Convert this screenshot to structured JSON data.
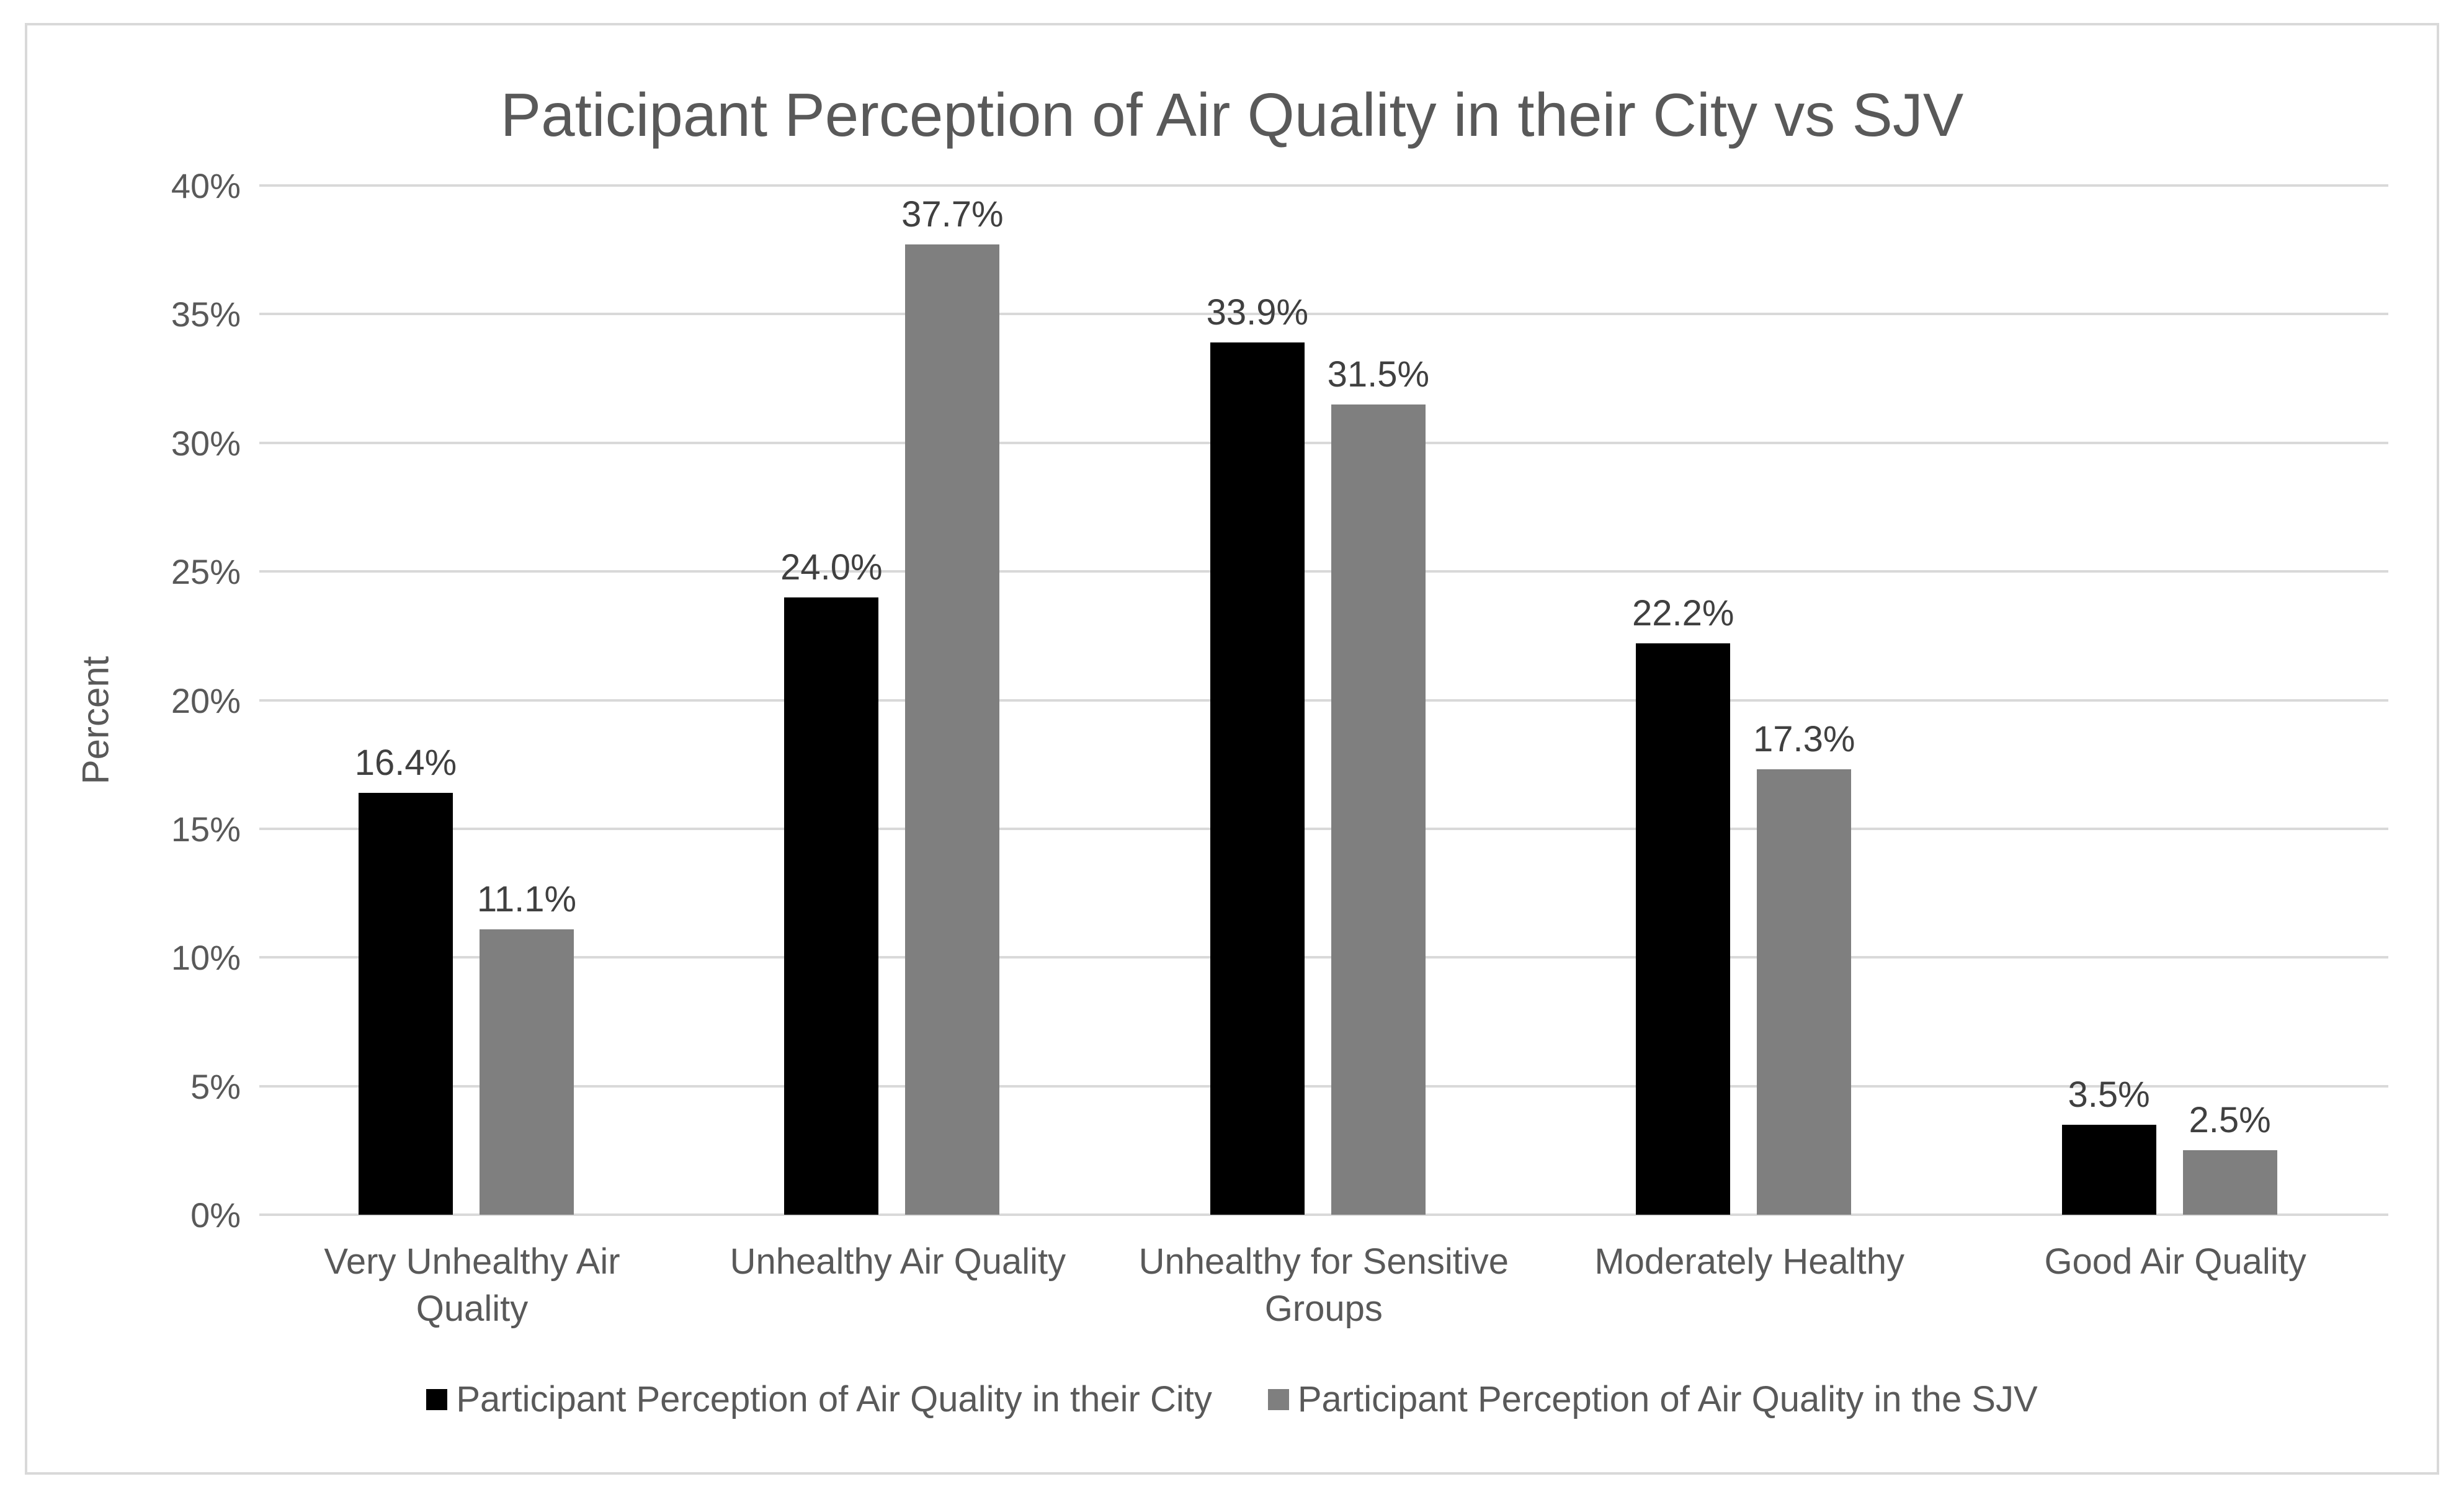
{
  "chart_data": {
    "type": "bar",
    "title": "Paticipant Perception of Air Quality in their City vs SJV",
    "xlabel": "",
    "ylabel": "Percent",
    "ylim": [
      0,
      40
    ],
    "yticks": [
      "0%",
      "5%",
      "10%",
      "15%",
      "20%",
      "25%",
      "30%",
      "35%",
      "40%"
    ],
    "grid": true,
    "legend_position": "bottom",
    "categories": [
      "Very Unhealthy Air Quality",
      "Unhealthy Air Quality",
      "Unhealthy for Sensitive Groups",
      "Moderately Healthy",
      "Good Air Quality"
    ],
    "series": [
      {
        "name": "Participant Perception of Air Quality in their City",
        "color": "#000000",
        "values": [
          16.4,
          24.0,
          33.9,
          22.2,
          3.5
        ],
        "labels": [
          "16.4%",
          "24.0%",
          "33.9%",
          "22.2%",
          "3.5%"
        ]
      },
      {
        "name": "Participant Perception of Air Quality in the SJV",
        "color": "#7f7f7f",
        "values": [
          11.1,
          37.7,
          31.5,
          17.3,
          2.5
        ],
        "labels": [
          "11.1%",
          "37.7%",
          "31.5%",
          "17.3%",
          "2.5%"
        ]
      }
    ]
  },
  "x_labels": [
    [
      "Very Unhealthy Air",
      "Quality"
    ],
    [
      "Unhealthy Air Quality"
    ],
    [
      "Unhealthy for Sensitive",
      "Groups"
    ],
    [
      "Moderately Healthy"
    ],
    [
      "Good Air Quality"
    ]
  ]
}
